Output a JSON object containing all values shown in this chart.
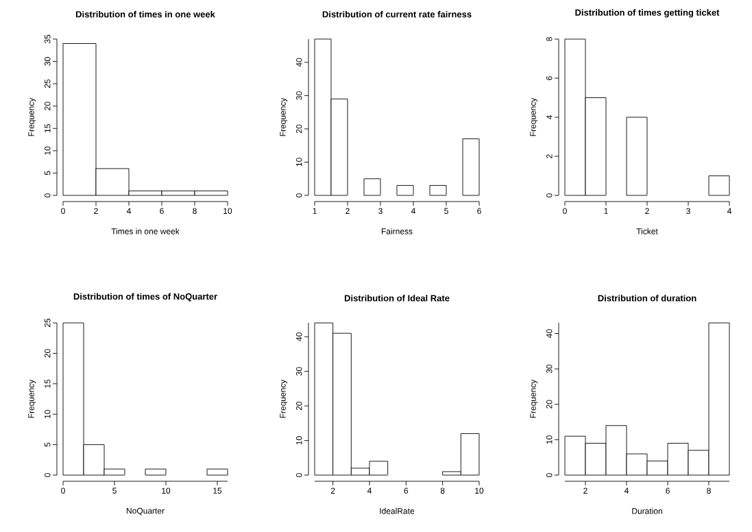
{
  "chart_data": [
    {
      "type": "histogram",
      "title": "Distribution of times in one week",
      "xlabel": "Times in one week",
      "ylabel": "Frequency",
      "bins": [
        0,
        2,
        4,
        6,
        8,
        10
      ],
      "values": [
        34,
        6,
        1,
        1,
        1
      ],
      "color": "#ffffff",
      "xlim": [
        0,
        10
      ],
      "ylim": [
        0,
        35
      ],
      "xticks": [
        0,
        2,
        4,
        6,
        8,
        10
      ],
      "yticks": [
        0,
        5,
        10,
        15,
        20,
        25,
        30,
        35
      ]
    },
    {
      "type": "histogram",
      "title": "Distribution of current rate fairness",
      "xlabel": "Fairness",
      "ylabel": "Frequency",
      "bins": [
        1,
        1.5,
        2,
        2.5,
        3,
        3.5,
        4,
        4.5,
        5,
        5.5,
        6
      ],
      "values": [
        47,
        29,
        0,
        5,
        0,
        3,
        0,
        3,
        0,
        17
      ],
      "color": "#ffffff",
      "xlim": [
        1,
        6
      ],
      "ylim": [
        0,
        47
      ],
      "xticks": [
        1,
        2,
        3,
        4,
        5,
        6
      ],
      "yticks": [
        0,
        10,
        20,
        30,
        40
      ]
    },
    {
      "type": "histogram",
      "title": "Distribution of times getting ticket",
      "xlabel": "Ticket",
      "ylabel": "Frequency",
      "bins": [
        0,
        0.5,
        1,
        1.5,
        2,
        2.5,
        3,
        3.5,
        4
      ],
      "values": [
        8,
        5,
        0,
        4,
        0,
        0,
        0,
        1
      ],
      "color": "#ffffff",
      "xlim": [
        0,
        4
      ],
      "ylim": [
        0,
        8
      ],
      "xticks": [
        0,
        1,
        2,
        3,
        4
      ],
      "yticks": [
        0,
        2,
        4,
        6,
        8
      ]
    },
    {
      "type": "histogram",
      "title": "Distribution of times of NoQuarter",
      "xlabel": "NoQuarter",
      "ylabel": "Frequency",
      "bins": [
        0,
        2,
        4,
        6,
        8,
        10,
        12,
        14,
        16
      ],
      "values": [
        25,
        5,
        1,
        0,
        1,
        0,
        0,
        1
      ],
      "color": "#ffffff",
      "xlim": [
        0,
        16
      ],
      "ylim": [
        0,
        25
      ],
      "xticks": [
        0,
        5,
        10,
        15
      ],
      "yticks": [
        0,
        5,
        10,
        15,
        20,
        25
      ]
    },
    {
      "type": "histogram",
      "title": "Distribution of Ideal Rate",
      "xlabel": "IdealRate",
      "ylabel": "Frequency",
      "bins": [
        1,
        2,
        3,
        4,
        5,
        6,
        7,
        8,
        9,
        10
      ],
      "values": [
        44,
        41,
        2,
        4,
        0,
        0,
        0,
        1,
        12
      ],
      "color": "#ffffff",
      "xlim": [
        1,
        10
      ],
      "ylim": [
        0,
        44
      ],
      "xticks": [
        2,
        4,
        6,
        8,
        10
      ],
      "yticks": [
        0,
        10,
        20,
        30,
        40
      ]
    },
    {
      "type": "histogram",
      "title": "Distribution of duration",
      "xlabel": "Duration",
      "ylabel": "Frequency",
      "bins": [
        1,
        2,
        3,
        4,
        5,
        6,
        7,
        8,
        9
      ],
      "values": [
        11,
        9,
        14,
        6,
        4,
        9,
        7,
        43
      ],
      "color": "#ffffff",
      "xlim": [
        1,
        9
      ],
      "ylim": [
        0,
        43
      ],
      "xticks": [
        2,
        4,
        6,
        8
      ],
      "yticks": [
        0,
        10,
        20,
        30,
        40
      ]
    }
  ]
}
